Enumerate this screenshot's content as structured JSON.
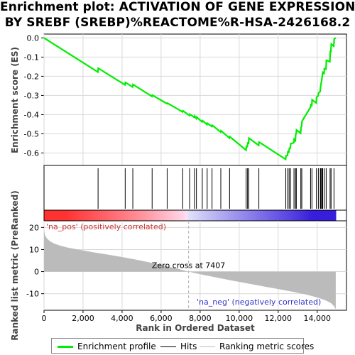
{
  "title_line1": "Enrichment plot: ACTIVATION OF GENE EXPRESSION",
  "title_line2": "BY SREBF (SREBP)%REACTOME%R-HSA-2426168.2",
  "colors": {
    "enrichment": "#00ee00",
    "hits": "#000000",
    "ranking": "#bbbbbb",
    "pos_label": "#cc3333",
    "neg_label": "#3333cc"
  },
  "chart_data": [
    {
      "type": "line",
      "name": "enrichment-profile",
      "ylabel": "Enrichment score (ES)",
      "xlim": [
        0,
        15500
      ],
      "ylim": [
        -0.665,
        0.02
      ],
      "yticks": [
        0.0,
        -0.1,
        -0.2,
        -0.3,
        -0.4,
        -0.5,
        -0.6
      ],
      "ytick_labels": [
        "0.0",
        "-0.1",
        "-0.2",
        "-0.3",
        "-0.4",
        "-0.5",
        "-0.6"
      ],
      "grid": true,
      "points": [
        [
          0,
          0.0
        ],
        [
          2760,
          -0.178
        ],
        [
          2780,
          -0.158
        ],
        [
          4150,
          -0.245
        ],
        [
          4170,
          -0.232
        ],
        [
          4540,
          -0.256
        ],
        [
          4560,
          -0.243
        ],
        [
          5530,
          -0.305
        ],
        [
          5550,
          -0.298
        ],
        [
          6300,
          -0.343
        ],
        [
          6320,
          -0.34
        ],
        [
          7100,
          -0.386
        ],
        [
          7120,
          -0.38
        ],
        [
          7450,
          -0.405
        ],
        [
          7470,
          -0.398
        ],
        [
          7700,
          -0.414
        ],
        [
          7720,
          -0.407
        ],
        [
          7800,
          -0.42
        ],
        [
          7820,
          -0.413
        ],
        [
          8100,
          -0.438
        ],
        [
          8120,
          -0.431
        ],
        [
          8350,
          -0.452
        ],
        [
          8370,
          -0.445
        ],
        [
          8600,
          -0.462
        ],
        [
          8620,
          -0.455
        ],
        [
          9050,
          -0.491
        ],
        [
          9070,
          -0.484
        ],
        [
          9500,
          -0.522
        ],
        [
          9520,
          -0.515
        ],
        [
          10350,
          -0.585
        ],
        [
          10370,
          -0.566
        ],
        [
          10420,
          -0.567
        ],
        [
          10440,
          -0.548
        ],
        [
          10480,
          -0.549
        ],
        [
          10500,
          -0.523
        ],
        [
          11000,
          -0.56
        ],
        [
          11020,
          -0.543
        ],
        [
          12380,
          -0.633
        ],
        [
          12400,
          -0.615
        ],
        [
          12480,
          -0.613
        ],
        [
          12500,
          -0.593
        ],
        [
          12550,
          -0.595
        ],
        [
          12570,
          -0.576
        ],
        [
          12620,
          -0.575
        ],
        [
          12640,
          -0.552
        ],
        [
          12800,
          -0.547
        ],
        [
          12820,
          -0.528
        ],
        [
          12880,
          -0.535
        ],
        [
          12900,
          -0.504
        ],
        [
          12920,
          -0.5
        ],
        [
          12940,
          -0.48
        ],
        [
          13150,
          -0.497
        ],
        [
          13170,
          -0.468
        ],
        [
          13200,
          -0.462
        ],
        [
          13220,
          -0.435
        ],
        [
          13650,
          -0.362
        ],
        [
          13670,
          -0.349
        ],
        [
          13720,
          -0.352
        ],
        [
          13740,
          -0.323
        ],
        [
          13950,
          -0.339
        ],
        [
          13970,
          -0.309
        ],
        [
          14050,
          -0.302
        ],
        [
          14070,
          -0.287
        ],
        [
          14150,
          -0.28
        ],
        [
          14170,
          -0.259
        ],
        [
          14180,
          -0.252
        ],
        [
          14200,
          -0.236
        ],
        [
          14230,
          -0.222
        ],
        [
          14250,
          -0.208
        ],
        [
          14270,
          -0.187
        ],
        [
          14290,
          -0.18
        ],
        [
          14350,
          -0.186
        ],
        [
          14370,
          -0.16
        ],
        [
          14450,
          -0.163
        ],
        [
          14470,
          -0.117
        ],
        [
          14650,
          -0.124
        ],
        [
          14670,
          -0.07
        ],
        [
          14700,
          -0.071
        ],
        [
          14720,
          -0.032
        ],
        [
          14850,
          -0.043
        ],
        [
          14870,
          -0.005
        ],
        [
          14950,
          0.0
        ]
      ]
    },
    {
      "type": "hits",
      "name": "hits",
      "hit_ranks": [
        2770,
        4160,
        4550,
        5540,
        6310,
        7110,
        7460,
        7710,
        7810,
        8110,
        8360,
        8610,
        9060,
        9510,
        10360,
        10430,
        10490,
        11010,
        12390,
        12490,
        12560,
        12630,
        12810,
        12890,
        12930,
        13160,
        13210,
        13660,
        13730,
        13960,
        14060,
        14160,
        14190,
        14240,
        14280,
        14360,
        14460,
        14660,
        14710,
        14860
      ]
    },
    {
      "type": "area",
      "name": "ranked-list-metric",
      "ylabel": "Ranked list metric (PreRanked)",
      "xlabel": "Rank in Ordered Dataset",
      "xlim": [
        0,
        15500
      ],
      "ylim": [
        -17.5,
        23
      ],
      "yticks": [
        20,
        10,
        0,
        -10
      ],
      "ytick_labels": [
        "20",
        "10",
        "0",
        "-10"
      ],
      "xticks": [
        0,
        2000,
        4000,
        6000,
        8000,
        10000,
        12000,
        14000
      ],
      "xtick_labels": [
        "0",
        "2,000",
        "4,000",
        "6,000",
        "8,000",
        "10,000",
        "12,000",
        "14,000"
      ],
      "zero_cross": 7407,
      "zero_cross_label": "Zero cross at 7407",
      "pos_label": "'na_pos' (positively correlated)",
      "neg_label": "'na_neg' (negatively correlated)",
      "curve": [
        [
          0,
          19.0
        ],
        [
          50,
          16.5
        ],
        [
          150,
          15.0
        ],
        [
          300,
          13.8
        ],
        [
          500,
          12.8
        ],
        [
          800,
          11.8
        ],
        [
          1200,
          10.9
        ],
        [
          1800,
          9.9
        ],
        [
          2500,
          8.8
        ],
        [
          3200,
          7.8
        ],
        [
          4000,
          6.6
        ],
        [
          4800,
          5.3
        ],
        [
          5600,
          3.8
        ],
        [
          6300,
          2.4
        ],
        [
          6900,
          1.2
        ],
        [
          7407,
          0.0
        ],
        [
          8000,
          -1.2
        ],
        [
          8800,
          -2.6
        ],
        [
          9600,
          -4.0
        ],
        [
          10400,
          -5.3
        ],
        [
          11200,
          -6.6
        ],
        [
          12000,
          -7.9
        ],
        [
          12800,
          -9.2
        ],
        [
          13500,
          -10.5
        ],
        [
          14000,
          -11.7
        ],
        [
          14400,
          -12.9
        ],
        [
          14700,
          -14.2
        ],
        [
          14850,
          -15.5
        ],
        [
          14950,
          -17.0
        ]
      ]
    }
  ],
  "legend": {
    "enrichment_label": "Enrichment profile",
    "hits_label": "Hits",
    "ranking_label": "Ranking metric scores"
  }
}
